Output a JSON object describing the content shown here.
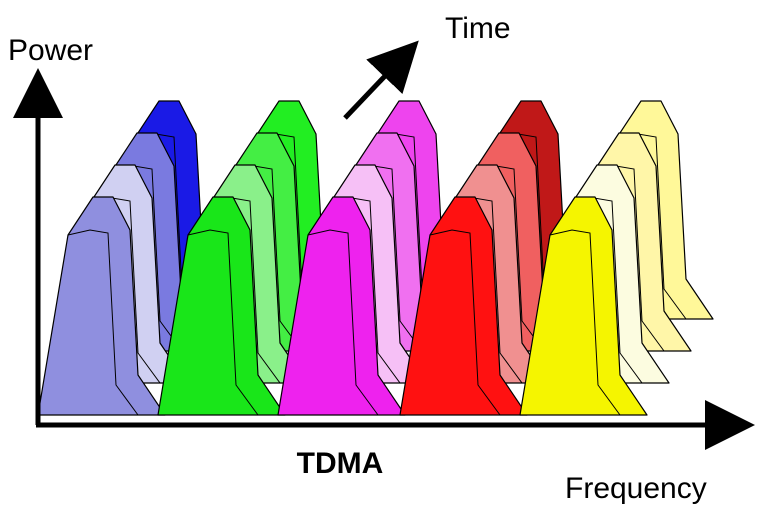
{
  "labels": {
    "power": "Power",
    "time": "Time",
    "title": "TDMA",
    "frequency": "Frequency"
  }
}
